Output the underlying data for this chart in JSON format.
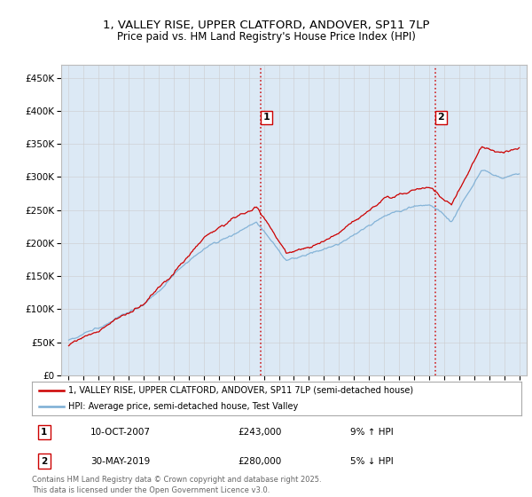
{
  "title_line1": "1, VALLEY RISE, UPPER CLATFORD, ANDOVER, SP11 7LP",
  "title_line2": "Price paid vs. HM Land Registry's House Price Index (HPI)",
  "legend_line1": "1, VALLEY RISE, UPPER CLATFORD, ANDOVER, SP11 7LP (semi-detached house)",
  "legend_line2": "HPI: Average price, semi-detached house, Test Valley",
  "annotation1_label": "1",
  "annotation1_date": "10-OCT-2007",
  "annotation1_price": "£243,000",
  "annotation1_hpi": "9% ↑ HPI",
  "annotation2_label": "2",
  "annotation2_date": "30-MAY-2019",
  "annotation2_price": "£280,000",
  "annotation2_hpi": "5% ↓ HPI",
  "footer": "Contains HM Land Registry data © Crown copyright and database right 2025.\nThis data is licensed under the Open Government Licence v3.0.",
  "sale1_year": 2007.78,
  "sale1_value": 243000,
  "sale2_year": 2019.41,
  "sale2_value": 280000,
  "red_color": "#cc0000",
  "blue_color": "#7aadd4",
  "background_color": "#dce9f5",
  "plot_bg_color": "#ffffff",
  "grid_color": "#cccccc",
  "vline_color": "#cc0000",
  "ylim_min": 0,
  "ylim_max": 470000,
  "xlim_min": 1994.5,
  "xlim_max": 2025.5
}
